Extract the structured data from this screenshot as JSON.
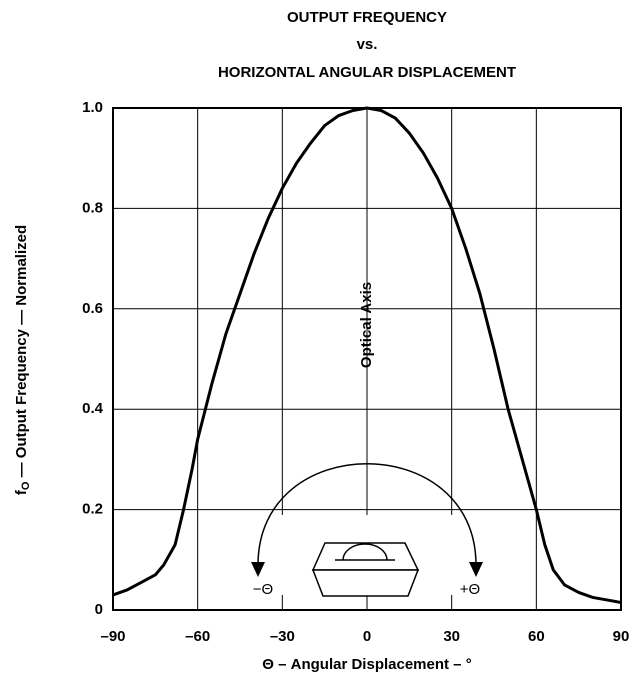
{
  "chart_data": {
    "type": "line",
    "title": [
      "OUTPUT FREQUENCY",
      "vs.",
      "HORIZONTAL ANGULAR DISPLACEMENT"
    ],
    "x_label": "Θ – Angular Displacement – °",
    "y_label": [
      "f",
      "O",
      " — Output Frequency — Normalized"
    ],
    "annotations": {
      "axis": "Optical Axis",
      "minus": "−Θ",
      "plus": "+Θ"
    },
    "x": [
      -90,
      -85,
      -80,
      -75,
      -72,
      -68,
      -65,
      -62,
      -60,
      -55,
      -50,
      -45,
      -40,
      -35,
      -30,
      -25,
      -20,
      -15,
      -10,
      -5,
      0,
      5,
      10,
      15,
      20,
      25,
      30,
      35,
      40,
      45,
      50,
      55,
      58,
      60,
      63,
      66,
      70,
      75,
      80,
      85,
      90
    ],
    "series": [
      {
        "name": "Output",
        "color": "#000000",
        "values": [
          0.03,
          0.04,
          0.055,
          0.07,
          0.09,
          0.13,
          0.2,
          0.28,
          0.34,
          0.45,
          0.55,
          0.63,
          0.71,
          0.78,
          0.84,
          0.89,
          0.93,
          0.965,
          0.985,
          0.995,
          1.0,
          0.995,
          0.98,
          0.95,
          0.91,
          0.86,
          0.8,
          0.72,
          0.63,
          0.52,
          0.4,
          0.3,
          0.24,
          0.2,
          0.13,
          0.08,
          0.05,
          0.035,
          0.025,
          0.02,
          0.015
        ]
      }
    ],
    "xlim": [
      -90,
      90
    ],
    "ylim": [
      0,
      1
    ],
    "xticks": [
      {
        "value": -90,
        "label": "–90"
      },
      {
        "value": -60,
        "label": "–60"
      },
      {
        "value": -30,
        "label": "–30"
      },
      0,
      30,
      60,
      90
    ],
    "yticks": [
      0,
      0.2,
      0.4,
      0.6,
      0.8,
      {
        "value": 1,
        "label": "1.0"
      }
    ],
    "grid": true
  }
}
